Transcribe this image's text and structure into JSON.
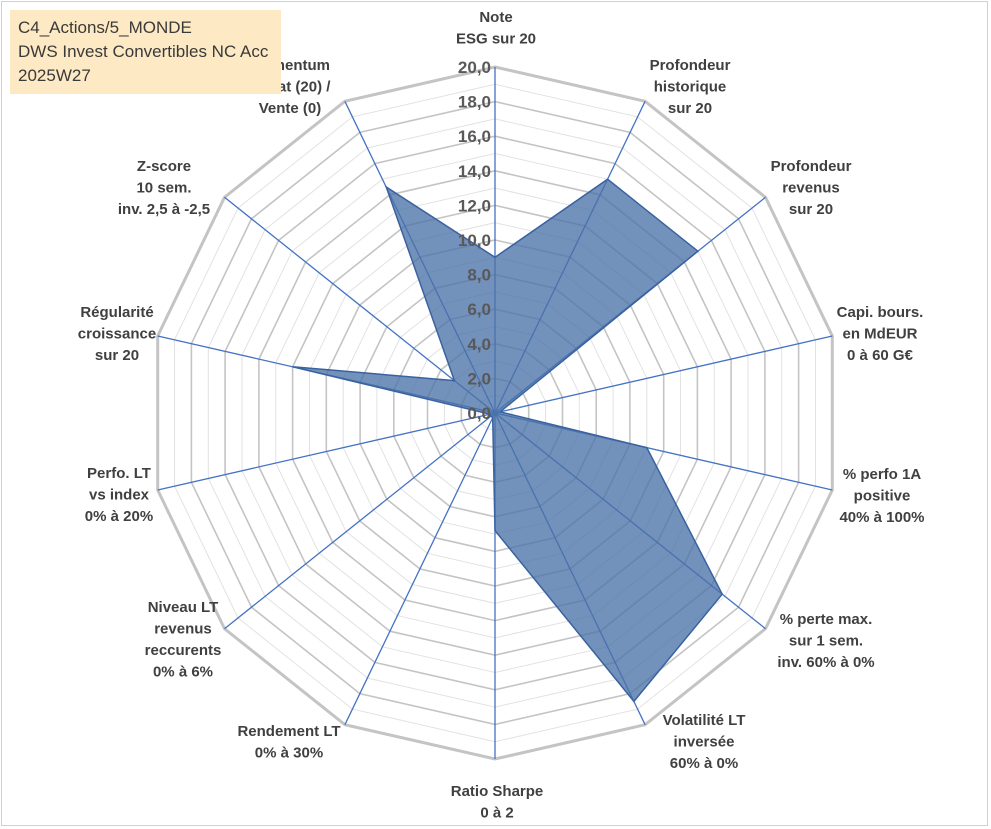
{
  "header": {
    "line1": "C4_Actions/5_MONDE",
    "line2": "DWS Invest Convertibles NC Acc",
    "line3": "2025W27"
  },
  "chart_data": {
    "type": "radar",
    "axes": [
      "Note\nESG sur 20",
      "Profondeur\nhistorique\nsur 20",
      "Profondeur\nrevenus\nsur 20",
      "Capi. bours.\nen MdEUR\n0 à 60 G€",
      "% perfo 1A\npositive\n40% à 100%",
      "% perte max.\nsur 1 sem.\ninv. 60% à 0%",
      "Volatilité LT\ninversée\n60% à 0%",
      "Ratio Sharpe\n0 à 2",
      "Rendement LT\n0% à 30%",
      "Niveau LT\nrevenus\nreccurents\n0% à 6%",
      "Perfo. LT\nvs index\n0% à 20%",
      "Régularité\ncroissance\nsur 20",
      "Z-score\n10 sem.\ninv. 2,5 à -2,5",
      "Momentum\nAchat (20) /\nVente (0)"
    ],
    "values": [
      9.0,
      15.0,
      15.0,
      0.3,
      9.0,
      16.8,
      18.5,
      6.8,
      0.3,
      0.3,
      0.3,
      12.0,
      3.0,
      14.5
    ],
    "rmax": 20,
    "ticks": [
      "0,0",
      "2,0",
      "4,0",
      "6,0",
      "8,0",
      "10,0",
      "12,0",
      "14,0",
      "16,0",
      "18,0",
      "20,0"
    ],
    "series_color": "#4a72a8",
    "grid_color": "#c4c4c4",
    "spoke_color": "#4472c4"
  }
}
